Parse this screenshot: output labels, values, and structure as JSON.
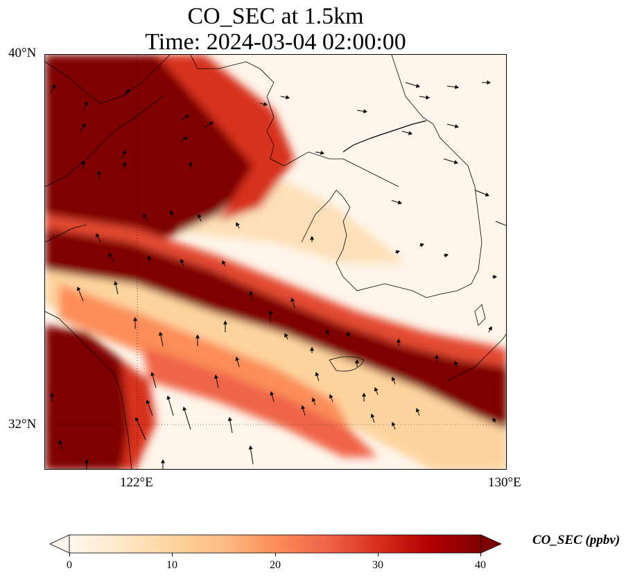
{
  "title": {
    "line1": "CO_SEC at 1.5km",
    "line2": "Time: 2024-03-04 02:00:00"
  },
  "map": {
    "lon_range": [
      119.8,
      130.0
    ],
    "lat_range": [
      30.9,
      40.0
    ],
    "gridlines": "dotted",
    "lat_ticks": [
      {
        "value": 40,
        "label": "40°N"
      },
      {
        "value": 32,
        "label": "32°N"
      }
    ],
    "lon_ticks": [
      {
        "value": 122,
        "label": "122°E"
      },
      {
        "value": 130,
        "label": "130°E"
      }
    ],
    "field": "CO_SEC",
    "field_units": "ppbv",
    "colormap": "OrRd",
    "colors": [
      "#fff7ec",
      "#fee8c8",
      "#fdd49e",
      "#fdbb84",
      "#fc8d59",
      "#ef6548",
      "#d7301f",
      "#b30000",
      "#7f0000"
    ],
    "vectors": "wind arrows (black)",
    "coastline_color": "#000000"
  },
  "colorbar": {
    "label": "CO_SEC (ppbv)",
    "min": 0,
    "max": 40,
    "extend": "both",
    "ticks": [
      "0",
      "10",
      "20",
      "30",
      "40"
    ]
  }
}
